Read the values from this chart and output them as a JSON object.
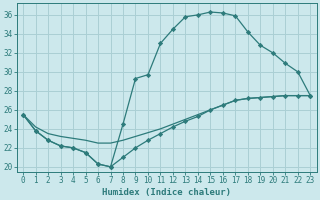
{
  "xlabel": "Humidex (Indice chaleur)",
  "background_color": "#cce8ec",
  "grid_color": "#aacfd4",
  "line_color": "#2d7b7b",
  "xlim": [
    -0.5,
    23.5
  ],
  "ylim": [
    19.5,
    37.2
  ],
  "xticks": [
    0,
    1,
    2,
    3,
    4,
    5,
    6,
    7,
    8,
    9,
    10,
    11,
    12,
    13,
    14,
    15,
    16,
    17,
    18,
    19,
    20,
    21,
    22,
    23
  ],
  "yticks": [
    20,
    22,
    24,
    26,
    28,
    30,
    32,
    34,
    36
  ],
  "line1_x": [
    0,
    1,
    2,
    3,
    4,
    5,
    6,
    7,
    8,
    9,
    10,
    11,
    12,
    13,
    14,
    15,
    16,
    17,
    18,
    19,
    20,
    21,
    22,
    23
  ],
  "line1_y": [
    25.5,
    23.8,
    22.8,
    22.2,
    22.0,
    21.5,
    20.3,
    20.0,
    24.5,
    29.3,
    29.7,
    33.0,
    34.5,
    35.8,
    36.0,
    36.3,
    36.2,
    35.9,
    34.2,
    32.8,
    32.0,
    30.9,
    30.0,
    27.5
  ],
  "line2_x": [
    0,
    1,
    2,
    3,
    4,
    5,
    6,
    7,
    8,
    9,
    10,
    11,
    12,
    13,
    14,
    15,
    16,
    17,
    18,
    19,
    20,
    21,
    22,
    23
  ],
  "line2_y": [
    25.5,
    23.8,
    22.8,
    22.2,
    22.0,
    21.5,
    20.3,
    20.0,
    21.0,
    22.0,
    22.8,
    23.5,
    24.2,
    24.8,
    25.3,
    26.0,
    26.5,
    27.0,
    27.2,
    27.3,
    27.4,
    27.5,
    27.5,
    27.5
  ],
  "line3_x": [
    0,
    1,
    2,
    3,
    4,
    5,
    6,
    7,
    8,
    9,
    10,
    11,
    12,
    13,
    14,
    15,
    16,
    17,
    18,
    19,
    20,
    21,
    22,
    23
  ],
  "line3_y": [
    25.5,
    24.2,
    23.5,
    23.2,
    23.0,
    22.8,
    22.5,
    22.5,
    22.8,
    23.2,
    23.6,
    24.0,
    24.5,
    25.0,
    25.5,
    26.0,
    26.5,
    27.0,
    27.2,
    27.3,
    27.4,
    27.5,
    27.5,
    27.5
  ]
}
